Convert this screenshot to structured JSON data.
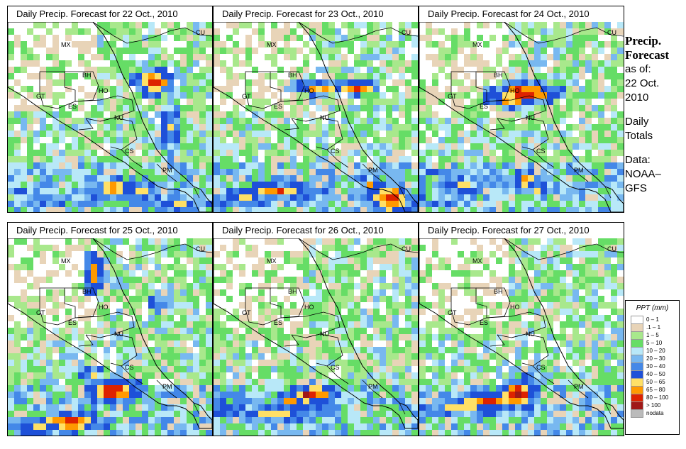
{
  "panels": [
    {
      "title": "Daily Precip. Forecast for  22 Oct., 2010",
      "seed": 11,
      "date_index": 0
    },
    {
      "title": "Daily Precip. Forecast for  23 Oct., 2010",
      "seed": 23,
      "date_index": 1
    },
    {
      "title": "Daily Precip. Forecast for  24 Oct., 2010",
      "seed": 37,
      "date_index": 2
    },
    {
      "title": "Daily Precip. Forecast for  25 Oct., 2010",
      "seed": 41,
      "date_index": 3
    },
    {
      "title": "Daily Precip. Forecast for  26 Oct., 2010",
      "seed": 53,
      "date_index": 4
    },
    {
      "title": "Daily Precip. Forecast for  27 Oct., 2010",
      "seed": 67,
      "date_index": 5
    }
  ],
  "country_labels": [
    "MX",
    "BH",
    "GT",
    "HO",
    "ES",
    "NU",
    "CS",
    "PM",
    "CU"
  ],
  "side_info": {
    "title_line1": "Precip.",
    "title_line2": "Forecast",
    "asof_line1": "as of:",
    "asof_line2": "22 Oct.",
    "asof_line3": "2010",
    "daily_line1": "Daily",
    "daily_line2": "Totals",
    "data_line1": "Data:",
    "data_line2": "NOAA–",
    "data_line3": "GFS"
  },
  "legend": {
    "title": "PPT (mm)",
    "items": [
      {
        "label": "0 – 1",
        "color": "#ffffff"
      },
      {
        "label": ".1 – 1",
        "color": "#e8d4b8"
      },
      {
        "label": "1 – 5",
        "color": "#a8e88c"
      },
      {
        "label": "5 – 10",
        "color": "#66dd66"
      },
      {
        "label": "10 – 20",
        "color": "#b8e8f8"
      },
      {
        "label": "20 – 30",
        "color": "#78b8f0"
      },
      {
        "label": "30 – 40",
        "color": "#4488e8"
      },
      {
        "label": "40 – 50",
        "color": "#1e50d8"
      },
      {
        "label": "50 – 65",
        "color": "#ffe066"
      },
      {
        "label": "65 – 80",
        "color": "#ff9900"
      },
      {
        "label": "80 – 100",
        "color": "#dd2200"
      },
      {
        "label": "> 100",
        "color": "#a01818"
      },
      {
        "label": "nodata",
        "color": "#bbbbbb"
      }
    ]
  }
}
